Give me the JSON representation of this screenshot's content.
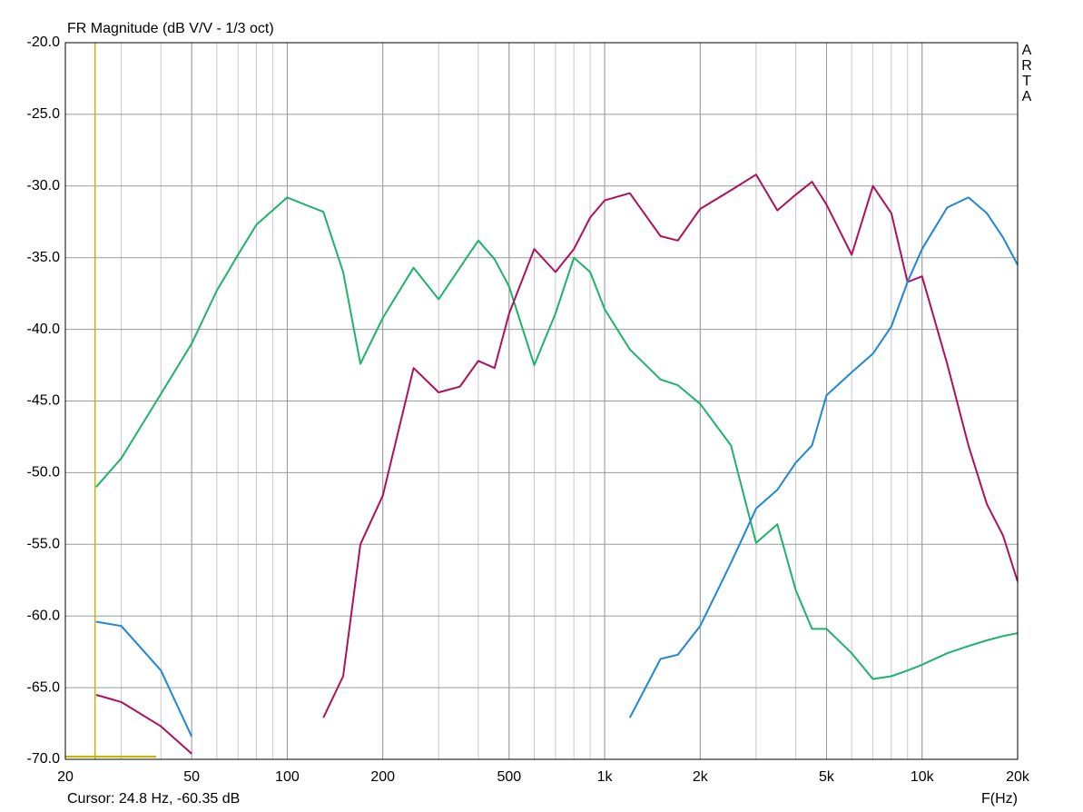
{
  "chart_data": {
    "type": "line",
    "title": "FR Magnitude (dB V/V - 1/3 oct)",
    "x_label": "F(Hz)",
    "watermark": "ARTA",
    "x_scale": "log",
    "grid": true,
    "cursor": {
      "x": 24.8,
      "text": "Cursor: 24.8 Hz, -60.35 dB",
      "color": "#c8b400"
    },
    "xlim": [
      20,
      20000
    ],
    "ylim": [
      -70,
      -20
    ],
    "xticks": [
      20,
      50,
      100,
      200,
      500,
      {
        "value": 1000,
        "label": "1k"
      },
      {
        "value": 2000,
        "label": "2k"
      },
      {
        "value": 5000,
        "label": "5k"
      },
      {
        "value": 10000,
        "label": "10k"
      },
      {
        "value": 20000,
        "label": "20k"
      }
    ],
    "yticks": [
      {
        "value": -70,
        "label": "-70.0"
      },
      {
        "value": -65,
        "label": "-65.0"
      },
      {
        "value": -60,
        "label": "-60.0"
      },
      {
        "value": -55,
        "label": "-55.0"
      },
      {
        "value": -50,
        "label": "-50.0"
      },
      {
        "value": -45,
        "label": "-45.0"
      },
      {
        "value": -40,
        "label": "-40.0"
      },
      {
        "value": -35,
        "label": "-35.0"
      },
      {
        "value": -30,
        "label": "-30.0"
      },
      {
        "value": -25,
        "label": "-25.0"
      },
      {
        "value": -20,
        "label": "-20.0"
      }
    ],
    "x": [
      25,
      30,
      40,
      50,
      60,
      70,
      80,
      100,
      120,
      130,
      150,
      170,
      200,
      250,
      300,
      350,
      400,
      450,
      500,
      600,
      700,
      800,
      900,
      1000,
      1200,
      1500,
      1700,
      2000,
      2500,
      3000,
      3500,
      4000,
      4500,
      5000,
      6000,
      7000,
      8000,
      9000,
      10000,
      12000,
      14000,
      16000,
      18000,
      20000
    ],
    "series": [
      {
        "color": "#1db36a",
        "values": [
          -51.0,
          -49.0,
          -44.5,
          -41.0,
          -37.3,
          -34.8,
          -32.7,
          -30.8,
          -31.5,
          -31.8,
          -36.0,
          -42.4,
          -39.2,
          -35.7,
          -37.9,
          -35.7,
          -33.8,
          -35.1,
          -37.0,
          -42.5,
          -38.9,
          -35.0,
          -36.0,
          -38.6,
          -41.4,
          -43.5,
          -43.9,
          -45.2,
          -48.1,
          -54.9,
          -53.6,
          -58.2,
          -60.9,
          -60.9,
          -62.6,
          -64.4,
          -64.2,
          -63.8,
          -63.4,
          -62.6,
          -62.1,
          -61.7,
          -61.4,
          -61.2
        ]
      },
      {
        "color": "#b0105a",
        "values": [
          -65.5,
          -66.0,
          -67.7,
          -69.6,
          null,
          null,
          null,
          null,
          null,
          -67.1,
          -64.2,
          -55.0,
          -51.6,
          -42.7,
          -44.4,
          -44.0,
          -42.2,
          -42.7,
          -38.9,
          -34.4,
          -36.0,
          -34.4,
          -32.2,
          -31.0,
          -30.5,
          -33.5,
          -33.8,
          -31.6,
          -30.3,
          -29.2,
          -31.7,
          -30.6,
          -29.7,
          -31.3,
          -34.8,
          -30.0,
          -31.9,
          -36.7,
          -36.3,
          -42.4,
          -48.1,
          -52.2,
          -54.4,
          -57.6
        ]
      },
      {
        "color": "#1f86d9",
        "values": [
          -60.4,
          -60.7,
          -63.8,
          -68.4,
          null,
          null,
          null,
          null,
          null,
          null,
          null,
          null,
          null,
          null,
          null,
          null,
          null,
          null,
          null,
          null,
          null,
          null,
          null,
          null,
          -67.1,
          -63.0,
          -62.7,
          -60.7,
          -56.3,
          -52.5,
          -51.2,
          -49.3,
          -48.1,
          -44.6,
          -43.0,
          -41.7,
          -39.8,
          -36.7,
          -34.4,
          -31.5,
          -30.8,
          -31.9,
          -33.6,
          -35.5
        ]
      }
    ]
  }
}
